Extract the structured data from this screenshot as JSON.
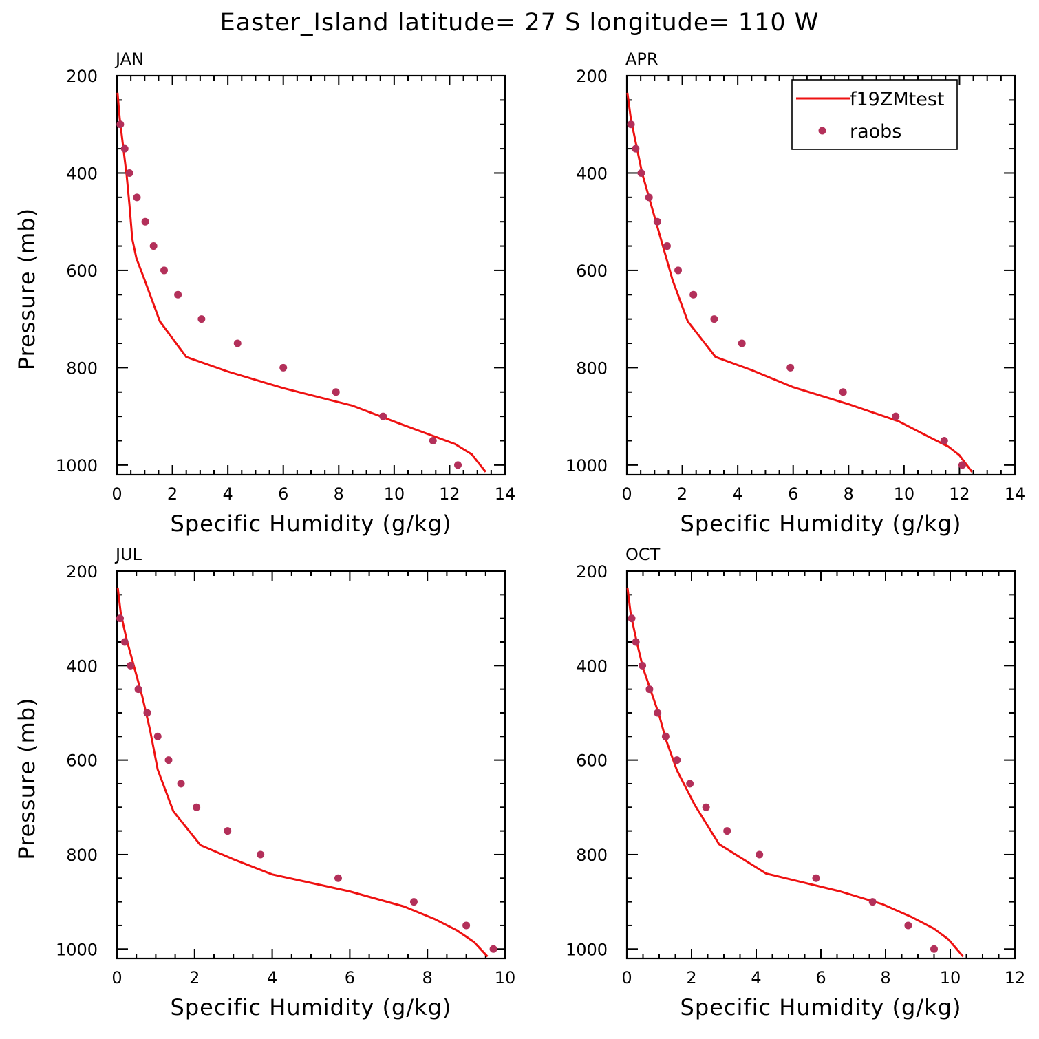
{
  "figure": {
    "title": "Easter_Island  latitude= 27 S longitude= 110 W"
  },
  "legend": {
    "model_label": "f19ZMtest",
    "obs_label": "raobs",
    "model_color": "#ee1111",
    "obs_color": "#b3305a",
    "placement": "top-right of APR panel"
  },
  "chart_data": [
    {
      "type": "line",
      "panel_label": "JAN",
      "xlabel": "Specific Humidity (g/kg)",
      "ylabel": "Pressure (mb)",
      "xlim": [
        0,
        14
      ],
      "xticks": [
        0,
        2,
        4,
        6,
        8,
        10,
        12,
        14
      ],
      "ylim": [
        200,
        1020
      ],
      "yticks": [
        200,
        400,
        600,
        800,
        1000
      ],
      "y_inverted": true,
      "series": [
        {
          "name": "f19ZMtest",
          "kind": "line",
          "x": [
            0.02,
            0.1,
            0.22,
            0.35,
            0.45,
            0.55,
            0.7,
            1.0,
            1.55,
            2.5,
            4.0,
            6.0,
            8.5,
            10.2,
            11.3,
            12.2,
            12.8,
            13.3
          ],
          "y": [
            235,
            288,
            345,
            405,
            465,
            535,
            575,
            620,
            705,
            778,
            808,
            842,
            878,
            915,
            938,
            957,
            978,
            1014
          ]
        },
        {
          "name": "raobs",
          "kind": "scatter",
          "x": [
            0.12,
            0.28,
            0.45,
            0.72,
            1.02,
            1.32,
            1.7,
            2.2,
            3.05,
            4.35,
            6.0,
            7.9,
            9.6,
            11.4,
            12.3
          ],
          "y": [
            300,
            350,
            400,
            450,
            500,
            550,
            600,
            650,
            700,
            750,
            800,
            850,
            900,
            950,
            1000
          ]
        }
      ]
    },
    {
      "type": "line",
      "panel_label": "APR",
      "xlabel": "Specific Humidity (g/kg)",
      "ylabel": "Pressure (mb)",
      "xlim": [
        0,
        14
      ],
      "xticks": [
        0,
        2,
        4,
        6,
        8,
        10,
        12,
        14
      ],
      "ylim": [
        200,
        1020
      ],
      "yticks": [
        200,
        400,
        600,
        800,
        1000
      ],
      "y_inverted": true,
      "show_legend": true,
      "series": [
        {
          "name": "f19ZMtest",
          "kind": "line",
          "x": [
            0.02,
            0.15,
            0.35,
            0.55,
            0.8,
            1.05,
            1.3,
            1.65,
            2.2,
            3.2,
            4.5,
            6.0,
            8.0,
            9.8,
            11.0,
            11.6,
            12.0,
            12.45
          ],
          "y": [
            235,
            290,
            345,
            400,
            450,
            500,
            550,
            620,
            705,
            778,
            805,
            840,
            875,
            910,
            945,
            962,
            980,
            1014
          ]
        },
        {
          "name": "raobs",
          "kind": "scatter",
          "x": [
            0.15,
            0.32,
            0.52,
            0.8,
            1.1,
            1.45,
            1.85,
            2.4,
            3.15,
            4.15,
            5.9,
            7.8,
            9.7,
            11.45,
            12.1
          ],
          "y": [
            300,
            350,
            400,
            450,
            500,
            550,
            600,
            650,
            700,
            750,
            800,
            850,
            900,
            950,
            1000
          ]
        }
      ]
    },
    {
      "type": "line",
      "panel_label": "JUL",
      "xlabel": "Specific Humidity (g/kg)",
      "ylabel": "Pressure (mb)",
      "xlim": [
        0,
        10
      ],
      "xticks": [
        0,
        2,
        4,
        6,
        8,
        10
      ],
      "ylim": [
        200,
        1020
      ],
      "yticks": [
        200,
        400,
        600,
        800,
        1000
      ],
      "y_inverted": true,
      "series": [
        {
          "name": "f19ZMtest",
          "kind": "line",
          "x": [
            0.02,
            0.1,
            0.25,
            0.45,
            0.65,
            0.85,
            1.05,
            1.45,
            2.15,
            3.0,
            4.0,
            6.0,
            7.4,
            8.2,
            8.75,
            9.2,
            9.55
          ],
          "y": [
            235,
            290,
            345,
            405,
            465,
            535,
            620,
            708,
            780,
            810,
            842,
            878,
            910,
            937,
            960,
            985,
            1016
          ]
        },
        {
          "name": "raobs",
          "kind": "scatter",
          "x": [
            0.08,
            0.2,
            0.35,
            0.55,
            0.78,
            1.05,
            1.33,
            1.65,
            2.05,
            2.85,
            3.7,
            5.7,
            7.65,
            9.0,
            9.7
          ],
          "y": [
            300,
            350,
            400,
            450,
            500,
            550,
            600,
            650,
            700,
            750,
            800,
            850,
            900,
            950,
            1000
          ]
        }
      ]
    },
    {
      "type": "line",
      "panel_label": "OCT",
      "xlabel": "Specific Humidity (g/kg)",
      "ylabel": "Pressure (mb)",
      "xlim": [
        0,
        12
      ],
      "xticks": [
        0,
        2,
        4,
        6,
        8,
        10,
        12
      ],
      "ylim": [
        200,
        1020
      ],
      "yticks": [
        200,
        400,
        600,
        800,
        1000
      ],
      "y_inverted": true,
      "series": [
        {
          "name": "f19ZMtest",
          "kind": "line",
          "x": [
            0.02,
            0.12,
            0.3,
            0.5,
            0.75,
            1.0,
            1.2,
            1.55,
            2.1,
            2.85,
            4.3,
            6.6,
            7.9,
            8.8,
            9.5,
            9.95,
            10.4
          ],
          "y": [
            235,
            290,
            348,
            405,
            455,
            505,
            555,
            622,
            695,
            778,
            840,
            878,
            905,
            932,
            957,
            980,
            1016
          ]
        },
        {
          "name": "raobs",
          "kind": "scatter",
          "x": [
            0.15,
            0.28,
            0.48,
            0.7,
            0.95,
            1.2,
            1.55,
            1.95,
            2.45,
            3.1,
            4.1,
            5.85,
            7.6,
            8.7,
            9.5
          ],
          "y": [
            300,
            350,
            400,
            450,
            500,
            550,
            600,
            650,
            700,
            750,
            800,
            850,
            900,
            950,
            1000
          ]
        }
      ]
    }
  ]
}
